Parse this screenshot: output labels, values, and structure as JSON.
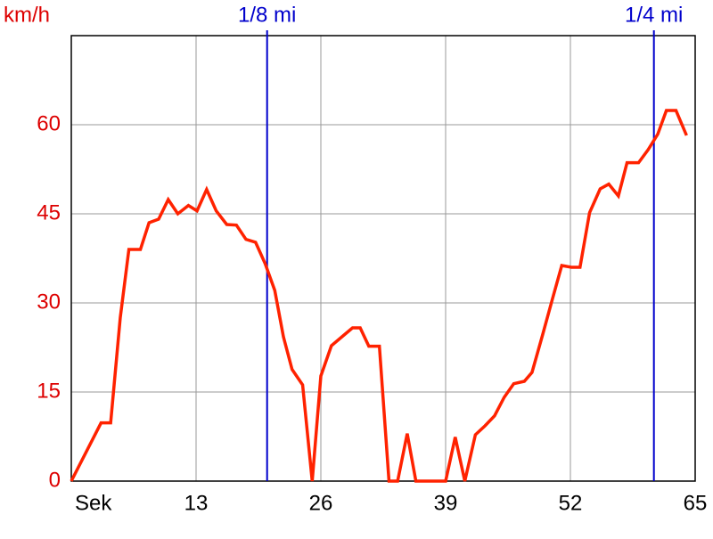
{
  "chart_data": {
    "type": "line",
    "y_label": "km/h",
    "x": [
      0,
      3.1,
      4.1,
      5.1,
      6.0,
      7.2,
      8.1,
      9.1,
      10.1,
      11.1,
      12.2,
      13.1,
      14.1,
      15.1,
      16.2,
      17.2,
      18.2,
      19.2,
      20.2,
      21.2,
      22.1,
      23.0,
      24.1,
      25.1,
      26.0,
      27.1,
      28.2,
      29.3,
      30.1,
      31.0,
      32.1,
      33.1,
      34.0,
      35.0,
      35.9,
      37.0,
      38.1,
      39.0,
      40.0,
      41.0,
      42.1,
      43.1,
      44.1,
      45.1,
      46.1,
      47.2,
      48.0,
      49.1,
      50.1,
      51.1,
      52.1,
      53.0,
      54.0,
      55.1,
      56.0,
      57.0,
      57.9,
      59.1,
      60.1,
      61.1,
      62.0,
      63.0,
      64.1
    ],
    "series": [
      {
        "name": "km/h",
        "color": "#ff2200",
        "values": [
          0,
          9.8,
          9.8,
          27.5,
          39,
          39,
          43.5,
          44.1,
          47.4,
          45,
          46.4,
          45.5,
          49.1,
          45.5,
          43.2,
          43.1,
          40.7,
          40.2,
          36.6,
          32.1,
          24.3,
          18.8,
          16.2,
          0,
          17.7,
          22.8,
          24.3,
          25.8,
          25.8,
          22.7,
          22.7,
          0,
          0,
          8.0,
          0,
          0,
          0,
          0,
          7.4,
          0,
          7.8,
          9.3,
          11,
          14.1,
          16.4,
          16.8,
          18.3,
          24.6,
          30.5,
          36.3,
          36,
          36,
          45.2,
          49.2,
          50,
          48,
          53.6,
          53.6,
          55.8,
          58.4,
          62.4,
          62.4,
          58.2
        ]
      }
    ],
    "markers": [
      {
        "label": "1/8 mi",
        "x": 20.4,
        "color": "#0000cc"
      },
      {
        "label": "1/4 mi",
        "x": 60.7,
        "color": "#0000cc"
      }
    ],
    "xlim": [
      0,
      65
    ],
    "ylim": [
      0,
      75
    ],
    "xticks": [
      {
        "value": 0,
        "label": "Sek"
      },
      13,
      26,
      39,
      52,
      65
    ],
    "yticks": [
      0,
      15,
      30,
      45,
      60
    ],
    "grid": true
  }
}
